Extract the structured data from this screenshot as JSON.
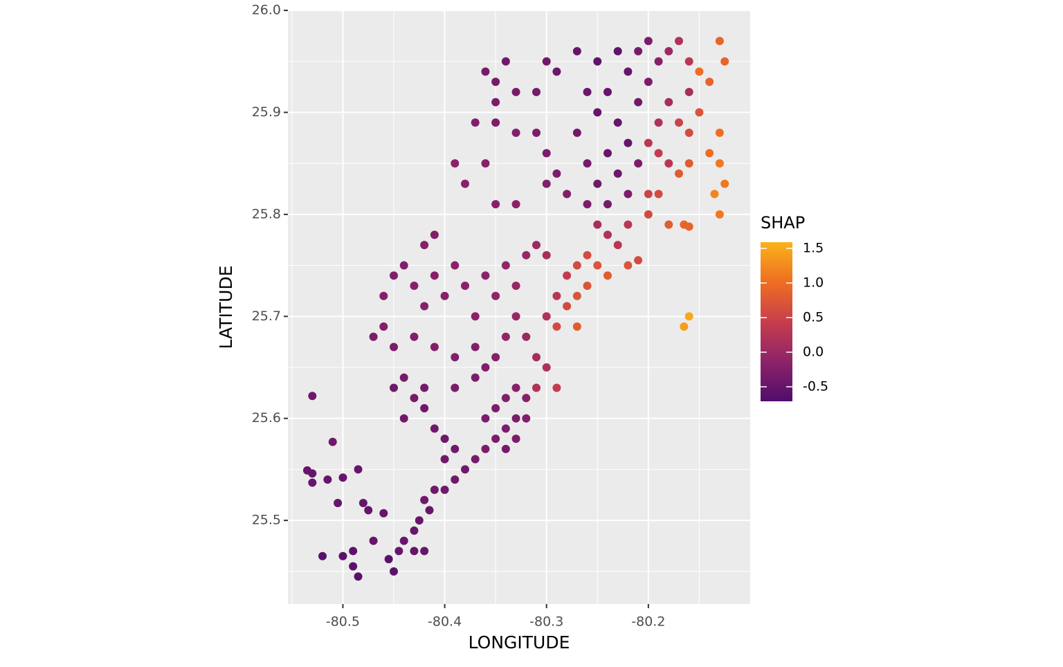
{
  "chart_data": {
    "type": "scatter",
    "xlabel": "LONGITUDE",
    "ylabel": "LATITUDE",
    "xlim": [
      -80.554,
      -80.1
    ],
    "ylim": [
      25.418,
      26.0
    ],
    "xticks": [
      -80.5,
      -80.4,
      -80.3,
      -80.2
    ],
    "yticks": [
      25.5,
      25.6,
      25.7,
      25.8,
      25.9,
      {
        "value": 26.0,
        "label": "26.0"
      }
    ],
    "grid": true,
    "colorbar": {
      "title": "SHAP",
      "lim": [
        -0.71,
        1.59
      ],
      "ticks": [
        -0.5,
        {
          "value": 0,
          "label": "0.0"
        },
        0.5,
        {
          "value": 1,
          "label": "1.0"
        },
        1.5
      ],
      "colors": [
        "#4f0d6c",
        "#8d2369",
        "#c73e4c",
        "#ef6e21",
        "#f9b31a"
      ]
    },
    "x": [
      -80.53,
      -80.535,
      -80.53,
      -80.53,
      -80.51,
      -80.515,
      -80.5,
      -80.485,
      -80.505,
      -80.48,
      -80.475,
      -80.52,
      -80.5,
      -80.49,
      -80.485,
      -80.49,
      -80.47,
      -80.46,
      -80.455,
      -80.45,
      -80.445,
      -80.44,
      -80.43,
      -80.42,
      -80.43,
      -80.425,
      -80.415,
      -80.42,
      -80.41,
      -80.4,
      -80.39,
      -80.38,
      -80.37,
      -80.36,
      -80.35,
      -80.34,
      -80.33,
      -80.34,
      -80.33,
      -80.32,
      -80.32,
      -80.33,
      -80.34,
      -80.35,
      -80.36,
      -80.4,
      -80.39,
      -80.4,
      -80.41,
      -80.42,
      -80.44,
      -80.43,
      -80.45,
      -80.44,
      -80.42,
      -80.39,
      -80.37,
      -80.36,
      -80.35,
      -80.37,
      -80.39,
      -80.41,
      -80.43,
      -80.45,
      -80.46,
      -80.47,
      -80.46,
      -80.45,
      -80.44,
      -80.43,
      -80.42,
      -80.41,
      -80.4,
      -80.42,
      -80.41,
      -80.39,
      -80.38,
      -80.37,
      -80.36,
      -80.35,
      -80.34,
      -80.33,
      -80.32,
      -80.31,
      -80.3,
      -80.33,
      -80.32,
      -80.31,
      -80.3,
      -80.3,
      -80.29,
      -80.28,
      -80.27,
      -80.27,
      -80.26,
      -80.28,
      -80.29,
      -80.27,
      -80.26,
      -80.25,
      -80.24,
      -80.22,
      -80.21,
      -80.23,
      -80.24,
      -80.25,
      -80.22,
      -80.2,
      -80.18,
      -80.165,
      -80.16,
      -80.29,
      -80.31,
      -80.34,
      -80.39,
      -80.38,
      -80.36,
      -80.35,
      -80.33,
      -80.37,
      -80.35,
      -80.33,
      -80.31,
      -80.3,
      -80.29,
      -80.3,
      -80.28,
      -80.26,
      -80.27,
      -80.35,
      -80.34,
      -80.36,
      -80.33,
      -80.35,
      -80.3,
      -80.29,
      -80.27,
      -80.25,
      -80.23,
      -80.22,
      -80.24,
      -80.25,
      -80.23,
      -80.22,
      -80.24,
      -80.23,
      -80.21,
      -80.22,
      -80.25,
      -80.24,
      -80.26,
      -80.21,
      -80.2,
      -80.19,
      -80.2,
      -80.18,
      -80.17,
      -80.16,
      -80.16,
      -80.18,
      -80.19,
      -80.2,
      -80.19,
      -80.18,
      -80.17,
      -80.16,
      -80.15,
      -80.14,
      -80.15,
      -80.13,
      -80.125,
      -80.13,
      -80.14,
      -80.13,
      -80.135,
      -80.13,
      -80.125,
      -80.16,
      -80.17,
      -80.19,
      -80.2,
      -80.165,
      -80.16,
      -80.31,
      -80.26,
      -80.21
    ],
    "values": [
      25.622,
      25.549,
      25.537,
      25.546,
      25.577,
      25.54,
      25.542,
      25.55,
      25.517,
      25.517,
      25.51,
      25.465,
      25.465,
      25.47,
      25.445,
      25.455,
      25.48,
      25.507,
      25.462,
      25.45,
      25.47,
      25.48,
      25.47,
      25.47,
      25.49,
      25.5,
      25.51,
      25.52,
      25.53,
      25.53,
      25.54,
      25.55,
      25.56,
      25.57,
      25.58,
      25.59,
      25.6,
      25.57,
      25.58,
      25.6,
      25.62,
      25.63,
      25.62,
      25.61,
      25.6,
      25.58,
      25.57,
      25.56,
      25.59,
      25.61,
      25.6,
      25.62,
      25.63,
      25.64,
      25.63,
      25.63,
      25.64,
      25.65,
      25.66,
      25.67,
      25.66,
      25.67,
      25.68,
      25.67,
      25.69,
      25.68,
      25.72,
      25.74,
      25.75,
      25.73,
      25.71,
      25.74,
      25.72,
      25.77,
      25.78,
      25.75,
      25.73,
      25.7,
      25.74,
      25.72,
      25.75,
      25.73,
      25.76,
      25.77,
      25.76,
      25.7,
      25.68,
      25.66,
      25.65,
      25.7,
      25.72,
      25.74,
      25.75,
      25.72,
      25.73,
      25.71,
      25.69,
      25.69,
      25.76,
      25.75,
      25.74,
      25.75,
      25.755,
      25.77,
      25.78,
      25.79,
      25.79,
      25.8,
      25.79,
      25.69,
      25.7,
      25.63,
      25.63,
      25.68,
      25.85,
      25.83,
      25.85,
      25.81,
      25.81,
      25.89,
      25.89,
      25.88,
      25.88,
      25.86,
      25.84,
      25.83,
      25.82,
      25.85,
      25.88,
      25.93,
      25.95,
      25.94,
      25.92,
      25.91,
      25.95,
      25.94,
      25.96,
      25.95,
      25.96,
      25.94,
      25.92,
      25.9,
      25.89,
      25.87,
      25.86,
      25.84,
      25.85,
      25.82,
      25.83,
      25.81,
      25.81,
      25.91,
      25.93,
      25.95,
      25.97,
      25.96,
      25.97,
      25.95,
      25.92,
      25.91,
      25.89,
      25.87,
      25.86,
      25.85,
      25.89,
      25.88,
      25.9,
      25.93,
      25.94,
      25.97,
      25.95,
      25.88,
      25.86,
      25.85,
      25.82,
      25.8,
      25.83,
      25.85,
      25.84,
      25.82,
      25.82,
      25.79,
      25.788,
      25.92,
      25.92,
      25.96
    ],
    "shap": [
      -0.4,
      -0.5,
      -0.5,
      -0.5,
      -0.4,
      -0.5,
      -0.5,
      -0.5,
      -0.5,
      -0.5,
      -0.5,
      -0.6,
      -0.6,
      -0.6,
      -0.6,
      -0.6,
      -0.5,
      -0.5,
      -0.6,
      -0.6,
      -0.5,
      -0.5,
      -0.5,
      -0.5,
      -0.5,
      -0.5,
      -0.5,
      -0.4,
      -0.4,
      -0.4,
      -0.4,
      -0.4,
      -0.35,
      -0.3,
      -0.3,
      -0.3,
      -0.3,
      -0.35,
      -0.3,
      -0.25,
      -0.2,
      -0.2,
      -0.25,
      -0.3,
      -0.3,
      -0.4,
      -0.4,
      -0.4,
      -0.4,
      -0.4,
      -0.4,
      -0.35,
      -0.4,
      -0.35,
      -0.35,
      -0.3,
      -0.3,
      -0.25,
      -0.2,
      -0.25,
      -0.25,
      -0.25,
      -0.25,
      -0.3,
      -0.25,
      -0.3,
      -0.25,
      -0.25,
      -0.25,
      -0.2,
      -0.2,
      -0.2,
      -0.2,
      -0.2,
      -0.25,
      -0.15,
      -0.15,
      -0.15,
      -0.15,
      -0.1,
      -0.1,
      -0.05,
      -0.05,
      0,
      0.1,
      -0.05,
      0,
      0.1,
      0.2,
      0.2,
      0.3,
      0.4,
      0.6,
      0.7,
      0.7,
      0.6,
      0.6,
      0.8,
      0.6,
      0.7,
      0.8,
      0.7,
      0.6,
      0.3,
      0.2,
      0.1,
      0.3,
      0.6,
      0.8,
      1.4,
      1.5,
      0.4,
      0.2,
      -0.1,
      -0.15,
      -0.2,
      -0.2,
      -0.2,
      -0.15,
      -0.25,
      -0.3,
      -0.25,
      -0.3,
      -0.3,
      -0.3,
      -0.25,
      -0.25,
      -0.35,
      -0.4,
      -0.35,
      -0.4,
      -0.35,
      -0.35,
      -0.3,
      -0.4,
      -0.45,
      -0.5,
      -0.55,
      -0.55,
      -0.5,
      -0.5,
      -0.5,
      -0.5,
      -0.5,
      -0.5,
      -0.45,
      -0.3,
      -0.3,
      -0.4,
      -0.35,
      -0.3,
      -0.4,
      -0.3,
      -0.2,
      -0.3,
      0,
      0.2,
      0.3,
      0.1,
      0.1,
      0.2,
      0.3,
      0.4,
      0.3,
      0.5,
      0.6,
      0.7,
      0.9,
      1.0,
      0.9,
      0.9,
      1.0,
      1.0,
      1.1,
      1.2,
      1.1,
      1.1,
      0.8,
      0.8,
      0.6,
      0.5,
      0.9,
      0.9,
      -0.35,
      -0.45,
      -0.35
    ]
  }
}
